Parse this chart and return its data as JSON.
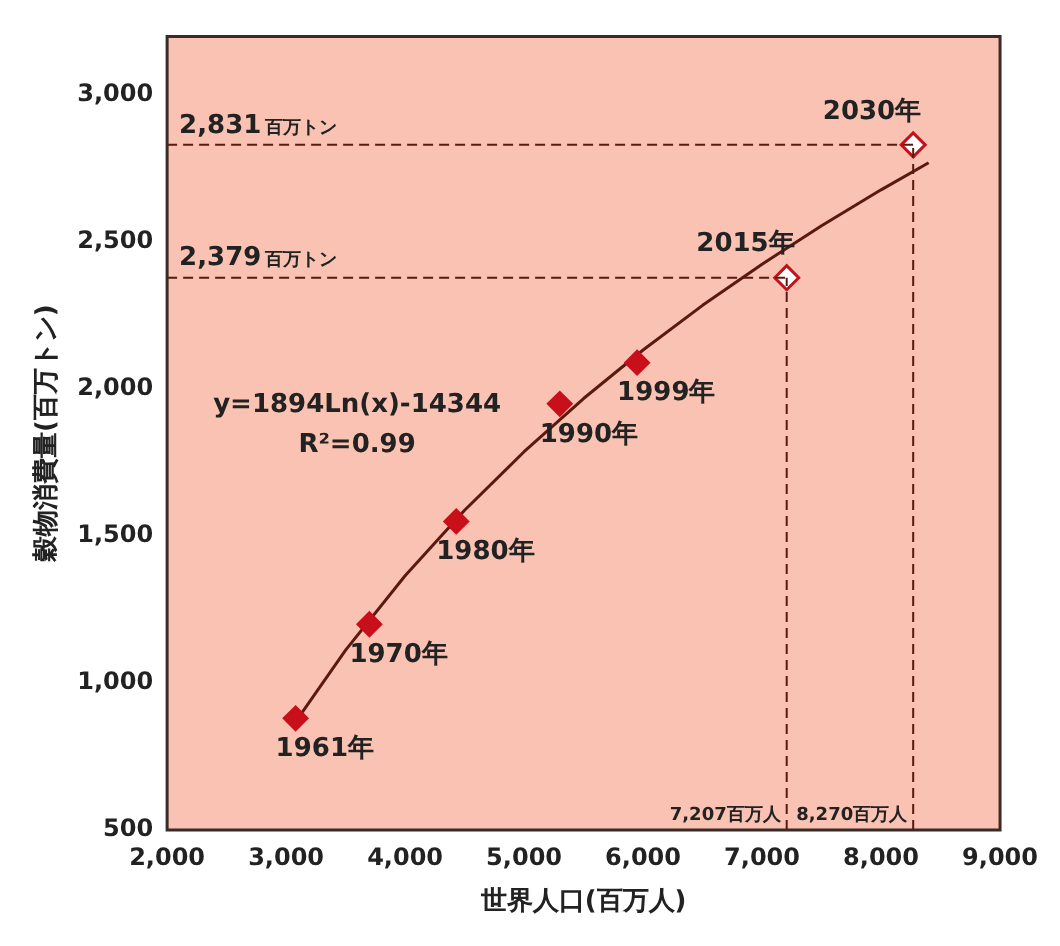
{
  "chart_data": {
    "type": "scatter",
    "xlabel": "世界人口(百万人)",
    "ylabel": "穀物消費量(百万トン)",
    "xlim": [
      2000,
      9000
    ],
    "xticks": [
      {
        "value": 2000,
        "label": "2,000"
      },
      {
        "value": 3000,
        "label": "3,000"
      },
      {
        "value": 4000,
        "label": "4,000"
      },
      {
        "value": 5000,
        "label": "5,000"
      },
      {
        "value": 6000,
        "label": "6,000"
      },
      {
        "value": 7000,
        "label": "7,000"
      },
      {
        "value": 8000,
        "label": "8,000"
      },
      {
        "value": 9000,
        "label": "9,000"
      }
    ],
    "ylim": [
      500,
      3200
    ],
    "yticks": [
      500,
      {
        "value": 1000,
        "label": "1,000"
      },
      {
        "value": 1500,
        "label": "1,500"
      },
      {
        "value": 2000,
        "label": "2,000"
      },
      {
        "value": 2500,
        "label": "2,500"
      },
      {
        "value": 3000,
        "label": "3,000"
      }
    ],
    "marker": "diamond",
    "grid": false,
    "legend": false,
    "series": [
      {
        "type": "line",
        "color": "#5a1a10",
        "marker": "none",
        "line_style": "solid",
        "x": [
          3050,
          3500,
          4000,
          4500,
          5000,
          5500,
          6000,
          6500,
          7000,
          7500,
          8000,
          8400
        ],
        "values": [
          851,
          1112,
          1365,
          1588,
          1787,
          1968,
          2133,
          2285,
          2425,
          2556,
          2678,
          2770
        ]
      },
      {
        "color": "#c8101a",
        "x": [
          3080,
          3700,
          4430,
          5300,
          5950
        ],
        "values": [
          880,
          1200,
          1550,
          1950,
          2090
        ]
      },
      {
        "color": "#c8101a",
        "x": [
          7207,
          8270
        ],
        "values": [
          2379,
          2831
        ]
      }
    ],
    "ref_lines": [
      {
        "axis": "y",
        "value": 2379,
        "label": "2,379百万トン",
        "line_style": "dashed",
        "color": "#5a1a10"
      },
      {
        "axis": "y",
        "value": 2831,
        "label": "2,831百万トン",
        "line_style": "dashed",
        "color": "#5a1a10"
      },
      {
        "axis": "x",
        "value": 7207,
        "label": "7,207百万人",
        "line_style": "dashed",
        "color": "#5a1a10"
      },
      {
        "axis": "x",
        "value": 8270,
        "label": "8,270百万人",
        "line_style": "dashed",
        "color": "#5a1a10"
      }
    ],
    "annotations": [
      {
        "text": "1961年",
        "x": 3080,
        "y": 880
      },
      {
        "text": "1970年",
        "x": 3700,
        "y": 1200
      },
      {
        "text": "1980年",
        "x": 4430,
        "y": 1550
      },
      {
        "text": "1990年",
        "x": 5300,
        "y": 1950
      },
      {
        "text": "1999年",
        "x": 5950,
        "y": 2090
      },
      {
        "text": "2015年",
        "x": 7207,
        "y": 2379
      },
      {
        "text": "2030年",
        "x": 8270,
        "y": 2831
      },
      "y=1894Ln(x)-14344",
      "R²=0.99"
    ]
  }
}
